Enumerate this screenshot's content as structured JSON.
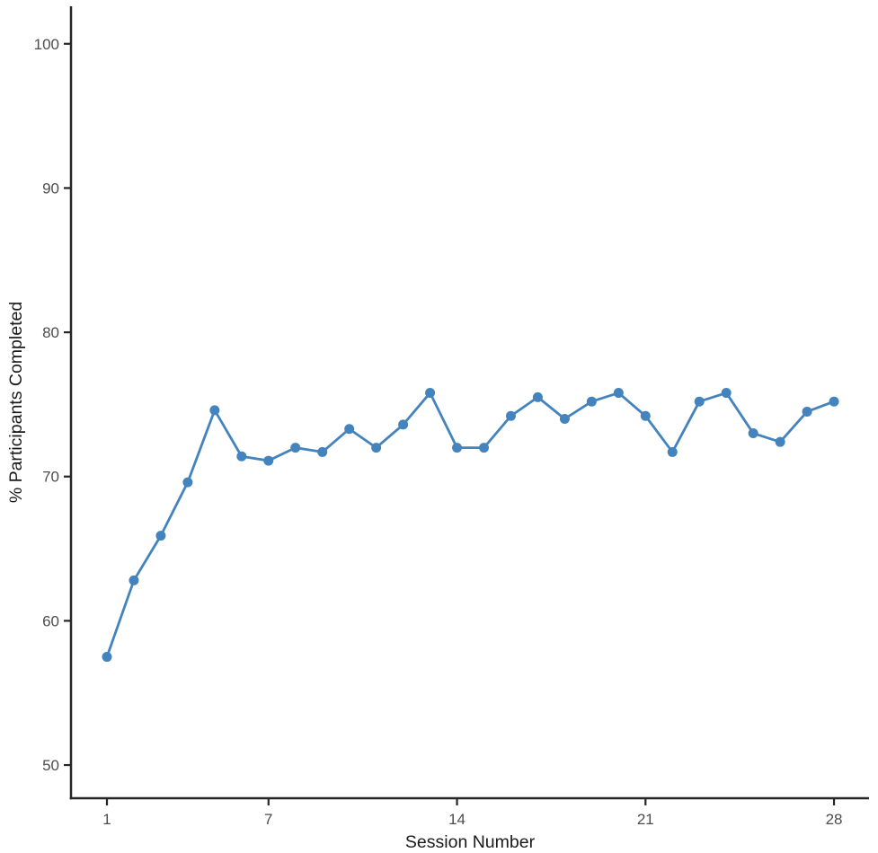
{
  "chart_data": {
    "type": "line",
    "title": "",
    "xlabel": "Session Number",
    "ylabel": "% Participants Completed",
    "x": [
      1,
      2,
      3,
      4,
      5,
      6,
      7,
      8,
      9,
      10,
      11,
      12,
      13,
      14,
      15,
      16,
      17,
      18,
      19,
      20,
      21,
      22,
      23,
      24,
      25,
      26,
      27,
      28
    ],
    "values": [
      57.5,
      62.8,
      65.9,
      69.6,
      74.6,
      71.4,
      71.1,
      72.0,
      71.7,
      73.3,
      72.0,
      73.6,
      75.8,
      72.0,
      72.0,
      74.2,
      75.5,
      74.0,
      75.2,
      75.8,
      74.2,
      71.7,
      75.2,
      75.8,
      73.0,
      72.4,
      74.5,
      75.2
    ],
    "x_ticks": [
      1,
      7,
      14,
      21,
      28
    ],
    "y_ticks": [
      50,
      60,
      70,
      80,
      90,
      100
    ],
    "xlim": [
      -0.335,
      29.3
    ],
    "ylim": [
      47.7,
      102.6
    ],
    "grid": false,
    "legend": "none",
    "marker": "circle",
    "colors": {
      "line": "#4383BE",
      "marker": "#4383BE",
      "axis": "#262626",
      "tick_label": "#4D4D4D",
      "axis_title": "#1A1A1A",
      "background": "#FFFFFF"
    }
  }
}
